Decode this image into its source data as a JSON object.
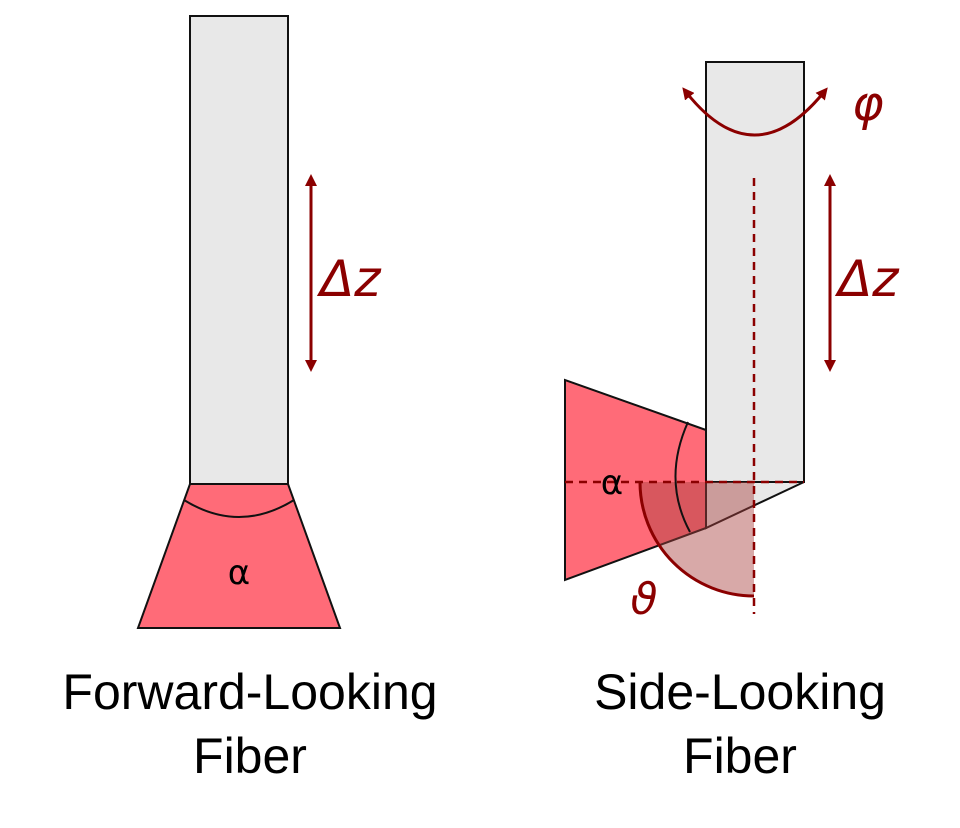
{
  "colors": {
    "fiber_fill": "#e8e8e8",
    "outline": "#111111",
    "beam": "#ff6b78",
    "accent": "#8b0000",
    "angle_fill": "#a8403f"
  },
  "forward": {
    "alpha_label": "α",
    "dz_label": "Δz",
    "caption_line1": "Forward-Looking",
    "caption_line2": "Fiber"
  },
  "side": {
    "alpha_label": "α",
    "dz_label": "Δz",
    "phi_label": "φ",
    "theta_label": "ϑ",
    "caption_line1": "Side-Looking",
    "caption_line2": "Fiber"
  }
}
